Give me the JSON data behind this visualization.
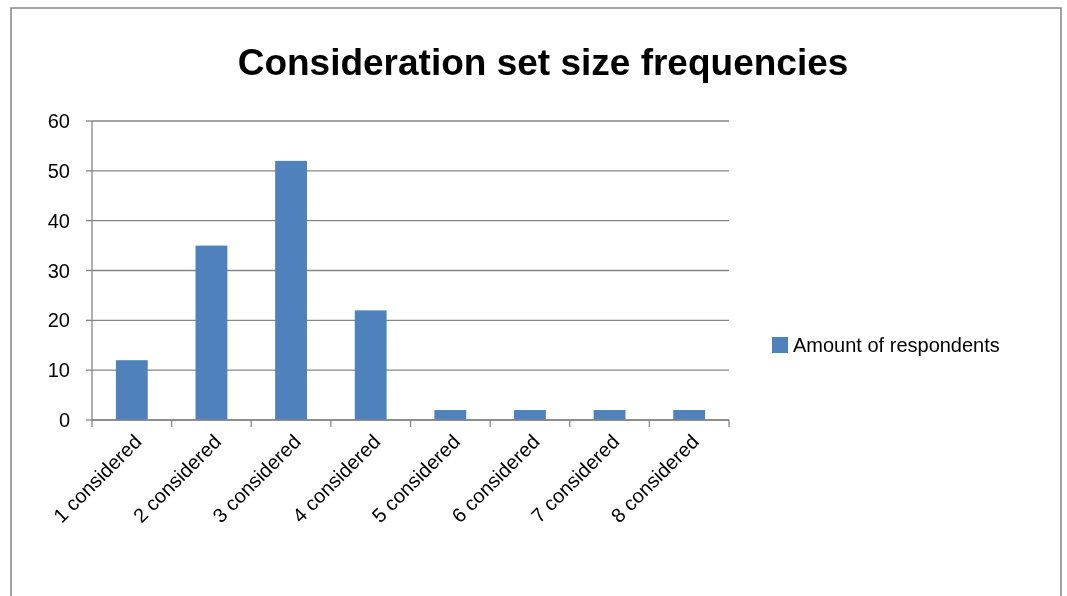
{
  "chart_data": {
    "type": "bar",
    "title": "Consideration set size frequencies",
    "categories": [
      "1 considered",
      "2 considered",
      "3 considered",
      "4 considered",
      "5 considered",
      "6 considered",
      "7 considered",
      "8 considered"
    ],
    "series": [
      {
        "name": "Amount of respondents",
        "color": "#4f81bd",
        "values": [
          12,
          35,
          52,
          22,
          2,
          2,
          2,
          2
        ]
      }
    ],
    "ylim": [
      0,
      60
    ],
    "yticks": [
      0,
      10,
      20,
      30,
      40,
      50,
      60
    ],
    "grid": "y",
    "legend": "right"
  }
}
